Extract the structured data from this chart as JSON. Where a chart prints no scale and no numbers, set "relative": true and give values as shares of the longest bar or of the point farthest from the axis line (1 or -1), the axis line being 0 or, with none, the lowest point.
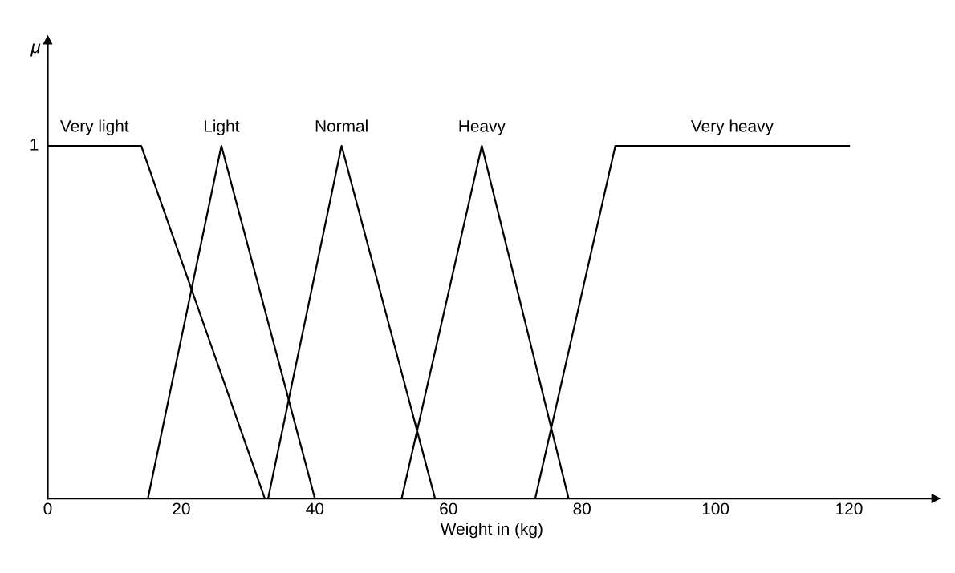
{
  "chart_data": {
    "type": "line",
    "xlabel": "Weight in (kg)",
    "series": [
      {
        "name": "Very light",
        "color": "#000000",
        "x": [
          0,
          14,
          32.5
        ],
        "values": [
          1,
          1,
          0
        ]
      },
      {
        "name": "Light",
        "color": "#000000",
        "x": [
          15,
          26,
          40
        ],
        "values": [
          0,
          1,
          0
        ]
      },
      {
        "name": "Normal",
        "color": "#000000",
        "x": [
          33,
          44,
          58
        ],
        "values": [
          0,
          1,
          0
        ]
      },
      {
        "name": "Heavy",
        "color": "#000000",
        "x": [
          53,
          65,
          78
        ],
        "values": [
          0,
          1,
          0
        ]
      },
      {
        "name": "Very heavy",
        "color": "#000000",
        "x": [
          73,
          85,
          120
        ],
        "values": [
          0,
          1,
          1
        ]
      }
    ],
    "xlim": [
      0,
      133
    ],
    "xticks": [
      0,
      20,
      40,
      60,
      80,
      100,
      120
    ],
    "relative": true,
    "annotations": [
      "μ",
      {
        "text": "1",
        "x": 0,
        "y": 1
      }
    ],
    "grid": false,
    "legend": false,
    "marker": "none",
    "line_style": "solid"
  }
}
